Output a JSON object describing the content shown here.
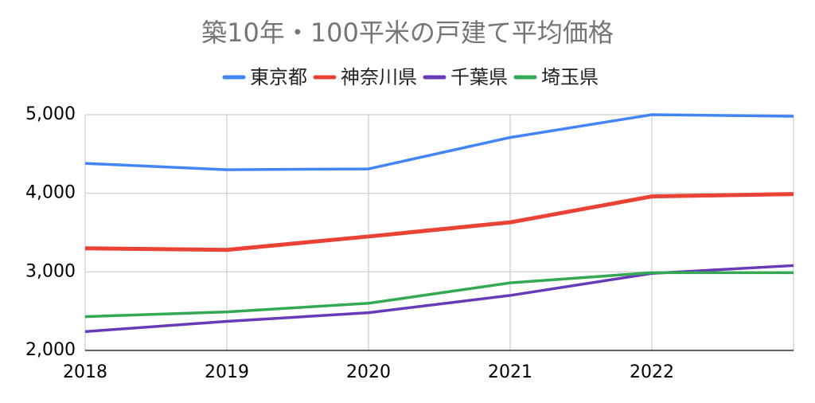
{
  "chart_data": {
    "type": "line",
    "title": "築10年・100平米の戸建て平均価格",
    "categories": [
      "2018",
      "2019",
      "2020",
      "2021",
      "2022",
      null
    ],
    "series": [
      {
        "name": "東京都",
        "color": "#4285f4",
        "values": [
          4380,
          4300,
          4310,
          4710,
          5000,
          4980
        ]
      },
      {
        "name": "神奈川県",
        "color": "#ea4335",
        "values": [
          3300,
          3280,
          3450,
          3630,
          3960,
          3990
        ]
      },
      {
        "name": "千葉県",
        "color": "#673ab7",
        "values": [
          2240,
          2370,
          2480,
          2700,
          2980,
          3080
        ]
      },
      {
        "name": "埼玉県",
        "color": "#34a853",
        "values": [
          2430,
          2490,
          2600,
          2860,
          2990,
          2990
        ]
      }
    ],
    "ylim": [
      2000,
      5000
    ],
    "yticks": [
      {
        "value": 2000,
        "label": "2,000"
      },
      {
        "value": 3000,
        "label": "3,000"
      },
      {
        "value": 4000,
        "label": "4,000"
      },
      {
        "value": 5000,
        "label": "5,000"
      }
    ],
    "grid": true,
    "legend": "top"
  }
}
